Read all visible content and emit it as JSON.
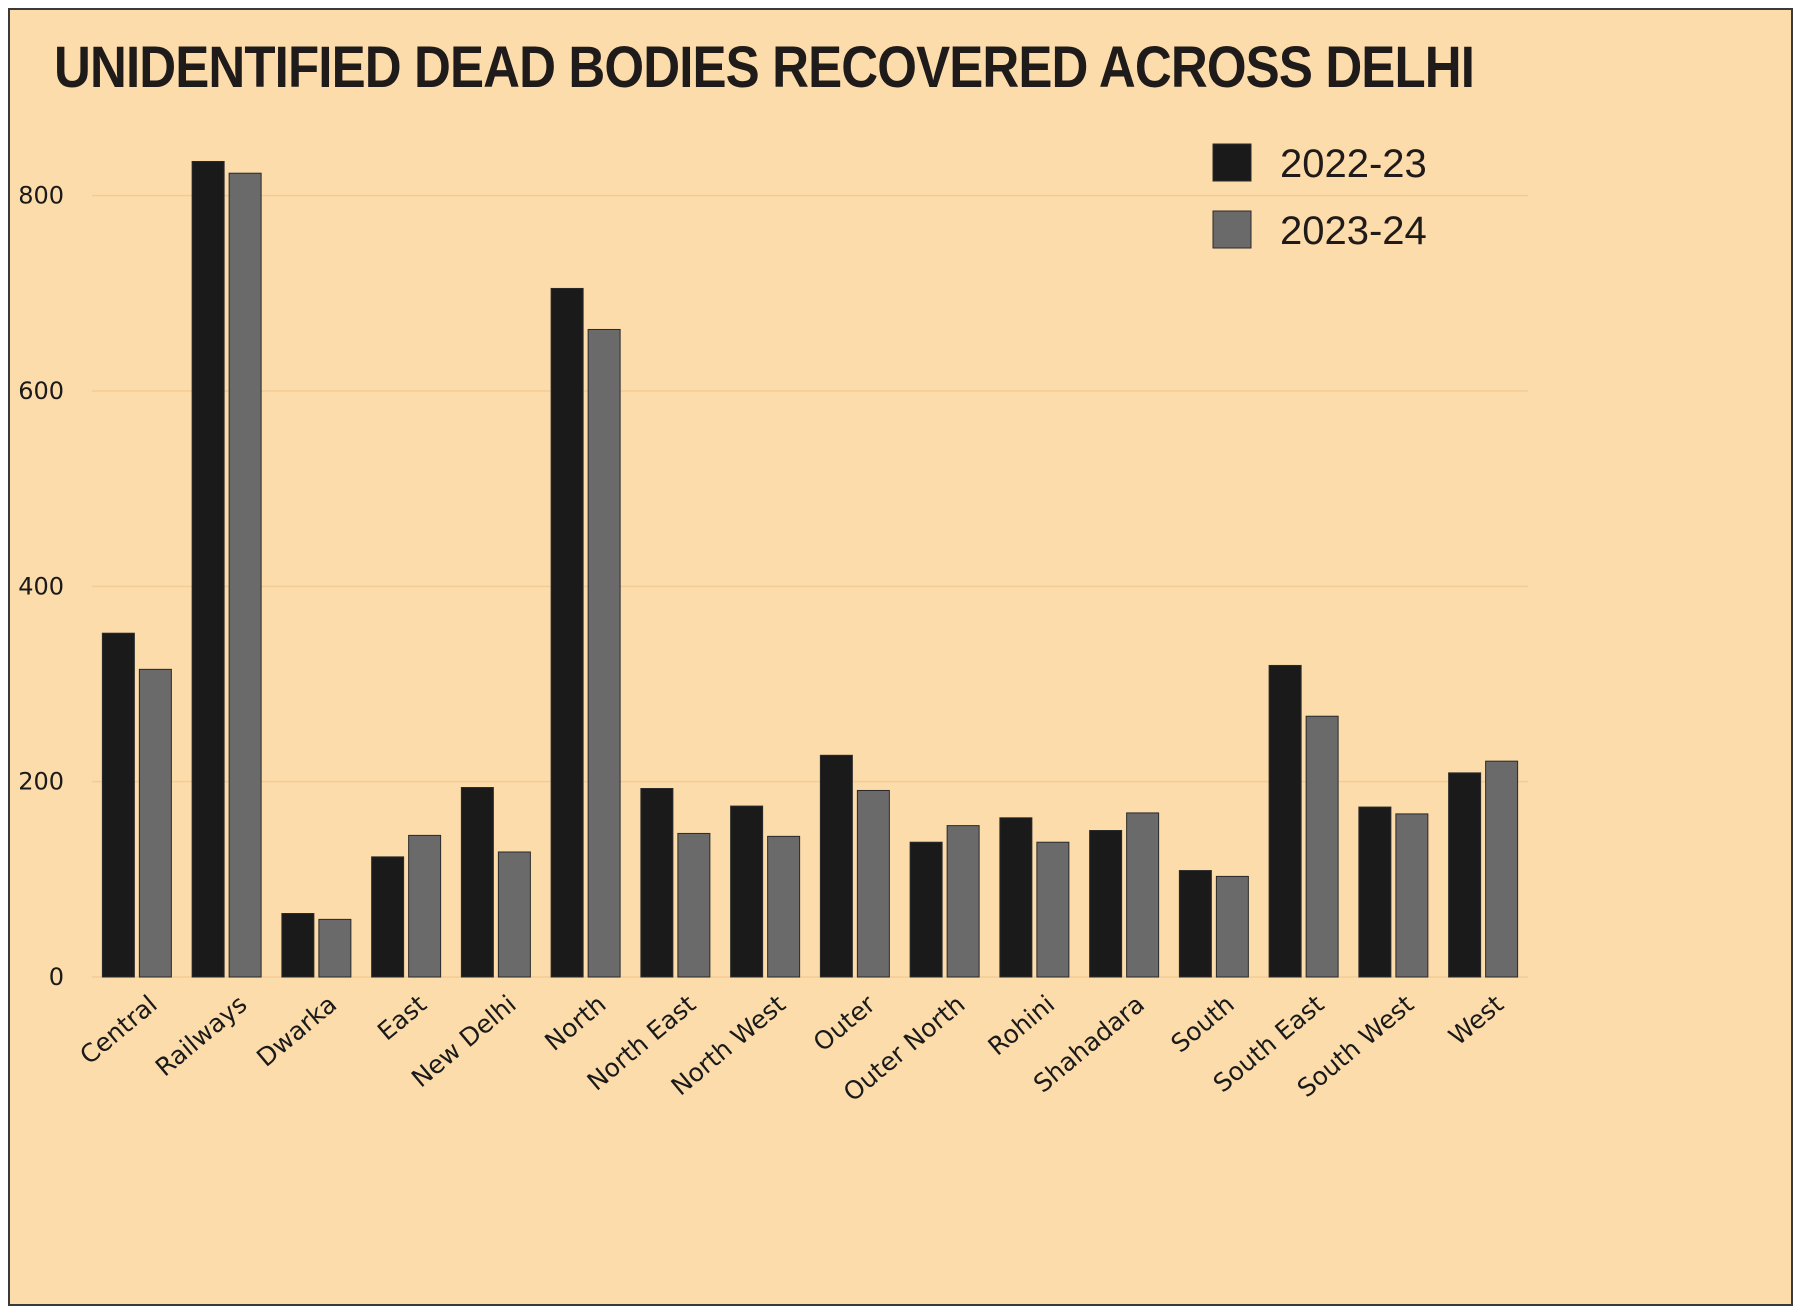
{
  "chart_data": {
    "type": "bar",
    "title": "UNIDENTIFIED DEAD BODIES RECOVERED ACROSS DELHI",
    "xlabel": "",
    "ylabel": "",
    "ylim": [
      0,
      900
    ],
    "yticks": [
      0,
      200,
      400,
      600,
      800
    ],
    "yticklabels": [
      "0",
      "200",
      "400",
      "600",
      "800"
    ],
    "grid": true,
    "legend_position": "top-right",
    "categories": [
      "Central",
      "Railways",
      "Dwarka",
      "East",
      "New Delhi",
      "North",
      "North East",
      "North West",
      "Outer",
      "Outer North",
      "Rohini",
      "Shahadara",
      "South",
      "South East",
      "South West",
      "West"
    ],
    "series": [
      {
        "name": "2022-23",
        "color": "#1a1a1a",
        "values": [
          352,
          835,
          65,
          123,
          194,
          705,
          193,
          175,
          227,
          138,
          163,
          150,
          109,
          319,
          174,
          209
        ]
      },
      {
        "name": "2023-24",
        "color": "#6a6a6a",
        "values": [
          315,
          823,
          59,
          145,
          128,
          663,
          147,
          144,
          191,
          155,
          138,
          168,
          103,
          267,
          167,
          221
        ]
      }
    ]
  }
}
